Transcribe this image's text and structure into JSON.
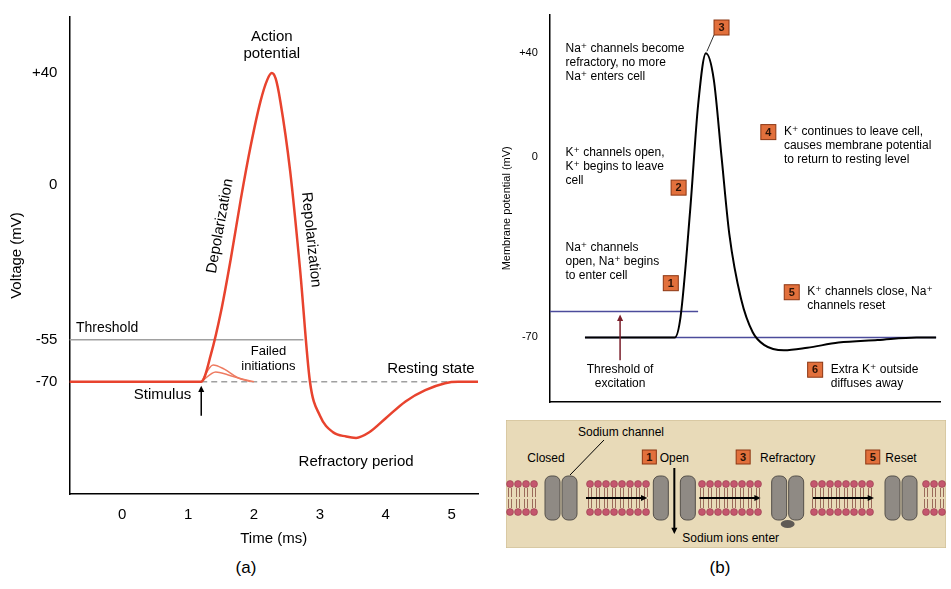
{
  "chart_data": [
    {
      "type": "line",
      "panel_label": "(a)",
      "x_label": "Time (ms)",
      "y_label": "Voltage (mV)",
      "xlim": [
        -0.8,
        5.4
      ],
      "xticks": [
        0,
        1,
        2,
        3,
        4,
        5
      ],
      "ylim": [
        -110,
        60
      ],
      "yticks": [
        -70,
        -55,
        0,
        {
          "value": 40,
          "label": "+40"
        }
      ],
      "grid": false,
      "series": [
        {
          "color": "#e8432e",
          "x": [
            -0.8,
            1.2,
            1.35,
            1.5,
            1.65,
            1.8,
            1.95,
            2.1,
            2.2,
            2.27,
            2.33,
            2.4,
            2.55,
            2.7,
            2.85,
            3.0,
            3.2,
            3.4,
            3.55,
            3.75,
            4.0,
            4.3,
            4.6,
            4.9,
            5.1,
            5.4
          ],
          "values": [
            -70,
            -70,
            -60,
            -45,
            -26,
            -5,
            14,
            30,
            37.5,
            40,
            38,
            30,
            5,
            -30,
            -70,
            -82,
            -88,
            -89.5,
            -90,
            -88,
            -83,
            -77,
            -73,
            -70.5,
            -70,
            -70
          ]
        },
        {
          "color": "#ee7b61",
          "x": [
            1.2,
            1.38,
            1.55,
            1.75,
            2.0
          ],
          "values": [
            -70,
            -64,
            -65.5,
            -68.5,
            -70
          ]
        },
        {
          "color": "#ee7b61",
          "x": [
            1.2,
            1.42,
            1.6,
            1.8,
            1.95
          ],
          "values": [
            -70,
            -66.5,
            -67.5,
            -69,
            -70
          ]
        },
        {
          "color": "#a0a0a0",
          "x": [
            -0.8,
            2.75
          ],
          "values": [
            -55,
            -55
          ]
        },
        {
          "color": "#a0a0a0",
          "line_style": "dashed",
          "x": [
            1.2,
            5.4
          ],
          "values": [
            -70,
            -70
          ]
        }
      ],
      "annotations": [
        "Action potential",
        "Depolarization",
        "Repolarization",
        "Failed initiations",
        "Threshold",
        "Resting state",
        "Refractory period",
        "Stimulus"
      ]
    },
    {
      "type": "line",
      "panel_label": "(b)",
      "y_label": "Membrane potential (mV)",
      "xlim": [
        0,
        100
      ],
      "ylim": [
        -95,
        55
      ],
      "yticks": [
        -70,
        0,
        {
          "value": 40,
          "label": "+40"
        }
      ],
      "grid": false,
      "tick_labels": "y",
      "series": [
        {
          "color": "#000000",
          "x": [
            9,
            32,
            33.5,
            36,
            38,
            40,
            42,
            44,
            46,
            49,
            52,
            55,
            60,
            66,
            74,
            84,
            94,
            99
          ],
          "values": [
            -70,
            -70,
            -62,
            -20,
            20,
            40,
            30,
            0,
            -30,
            -55,
            -68,
            -73,
            -75,
            -74,
            -72,
            -71,
            -70,
            -70
          ]
        },
        {
          "color": "#4b4b9b",
          "x": [
            0,
            38
          ],
          "values": [
            -60,
            -60
          ]
        },
        {
          "color": "#4b4b9b",
          "x": [
            9,
            99
          ],
          "values": [
            -70,
            -70
          ]
        }
      ],
      "annotations": [
        {
          "text": "Na⁺ channels open, Na⁺ begins to enter cell",
          "step": 1
        },
        {
          "text": "K⁺ channels open, K⁺ begins to leave cell",
          "step": 2
        },
        {
          "text": "Na⁺ channels become refractory, no more Na⁺ enters cell",
          "step": 3
        },
        {
          "text": "K⁺ continues to leave cell, causes membrane potential to return to resting level",
          "step": 4
        },
        {
          "text": "K⁺ channels close, Na⁺ channels reset",
          "step": 5
        },
        {
          "text": "Extra K⁺ outside diffuses away",
          "step": 6
        },
        {
          "text": "Threshold of excitation"
        }
      ]
    }
  ],
  "channel_diagram": {
    "states": [
      {
        "label": "Closed"
      },
      {
        "label": "Open",
        "step": 1
      },
      {
        "label": "Refractory",
        "step": 3
      },
      {
        "label": "Reset",
        "step": 5
      }
    ],
    "channel_label": "Sodium channel",
    "flow_label": "Sodium ions enter"
  }
}
